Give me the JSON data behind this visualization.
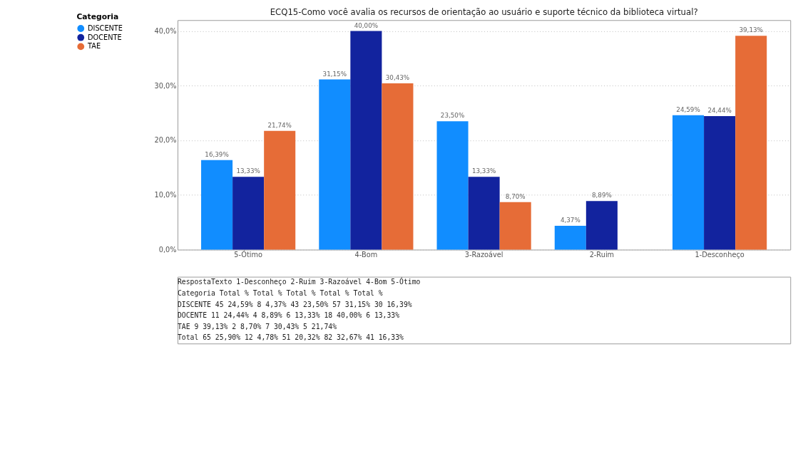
{
  "chart_data": {
    "type": "bar",
    "title": "ECQ15-Como você avalia os recursos de orientação ao usuário e suporte técnico da biblioteca virtual?",
    "legend_title": "Categoria",
    "legend": "top left",
    "grid": "y",
    "categories": [
      "5-Ótimo",
      "4-Bom",
      "3-Razoável",
      "2-Ruim",
      "1-Desconheço"
    ],
    "series": [
      {
        "name": "DISCENTE",
        "color": "#118dff",
        "values": [
          16.39,
          31.15,
          23.5,
          4.37,
          24.59
        ],
        "value_labels": [
          "16,39%",
          "31,15%",
          "23,50%",
          "4,37%",
          "24,59%"
        ]
      },
      {
        "name": "DOCENTE",
        "color": "#12239e",
        "values": [
          13.33,
          40.0,
          13.33,
          8.89,
          24.44
        ],
        "value_labels": [
          "13,33%",
          "40,00%",
          "13,33%",
          "8,89%",
          "24,44%"
        ]
      },
      {
        "name": "TAE",
        "color": "#e66c37",
        "values": [
          21.74,
          30.43,
          8.7,
          null,
          39.13
        ],
        "value_labels": [
          "21,74%",
          "30,43%",
          "8,70%",
          null,
          "39,13%"
        ]
      }
    ],
    "ylim": [
      0,
      42
    ],
    "yticks": [
      {
        "value": 0,
        "label": "0,0%"
      },
      {
        "value": 10,
        "label": "10,0%"
      },
      {
        "value": 20,
        "label": "20,0%"
      },
      {
        "value": 30,
        "label": "30,0%"
      },
      {
        "value": 40,
        "label": "40,0%"
      }
    ],
    "annotations": [
      "RespostaTexto   1-Desconheço   2-Ruim   3-Razoável   4-Bom   5-Ótimo",
      "Categoria   Total   %   Total   %   Total   %   Total   %   Total   %",
      "DISCENTE   45   24,59%   8   4,37%   43   23,50%   57   31,15%   30   16,39%",
      "DOCENTE   11   24,44%   4   8,89%   6   13,33%   18   40,00%   6   13,33%",
      "TAE   9   39,13%   2   8,70%   7   30,43%   5   21,74%",
      "Total   65   25,90%   12   4,78%   51   20,32%   82   32,67%   41   16,33%"
    ]
  }
}
